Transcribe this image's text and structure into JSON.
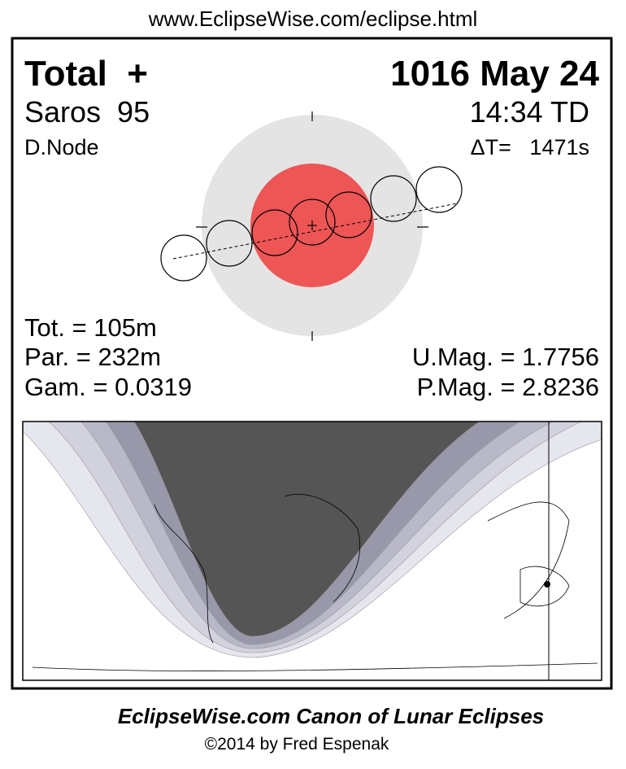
{
  "header": {
    "url": "www.EclipseWise.com/eclipse.html"
  },
  "eclipse": {
    "type": "Total  +",
    "date": "1016 May 24",
    "saros": "Saros  95",
    "time": "14:34 TD",
    "node": "D.Node",
    "delta_t": "ΔT=   1471s"
  },
  "stats": {
    "tot": "Tot. = 105m",
    "par": "Par. = 232m",
    "gam": "Gam. = 0.0319",
    "umag": "U.Mag. = 1.7756",
    "pmag": "P.Mag. = 2.8236"
  },
  "footer": {
    "title": "EclipseWise.com Canon of Lunar Eclipses",
    "copyright": "©2014 by Fred Espenak"
  }
}
